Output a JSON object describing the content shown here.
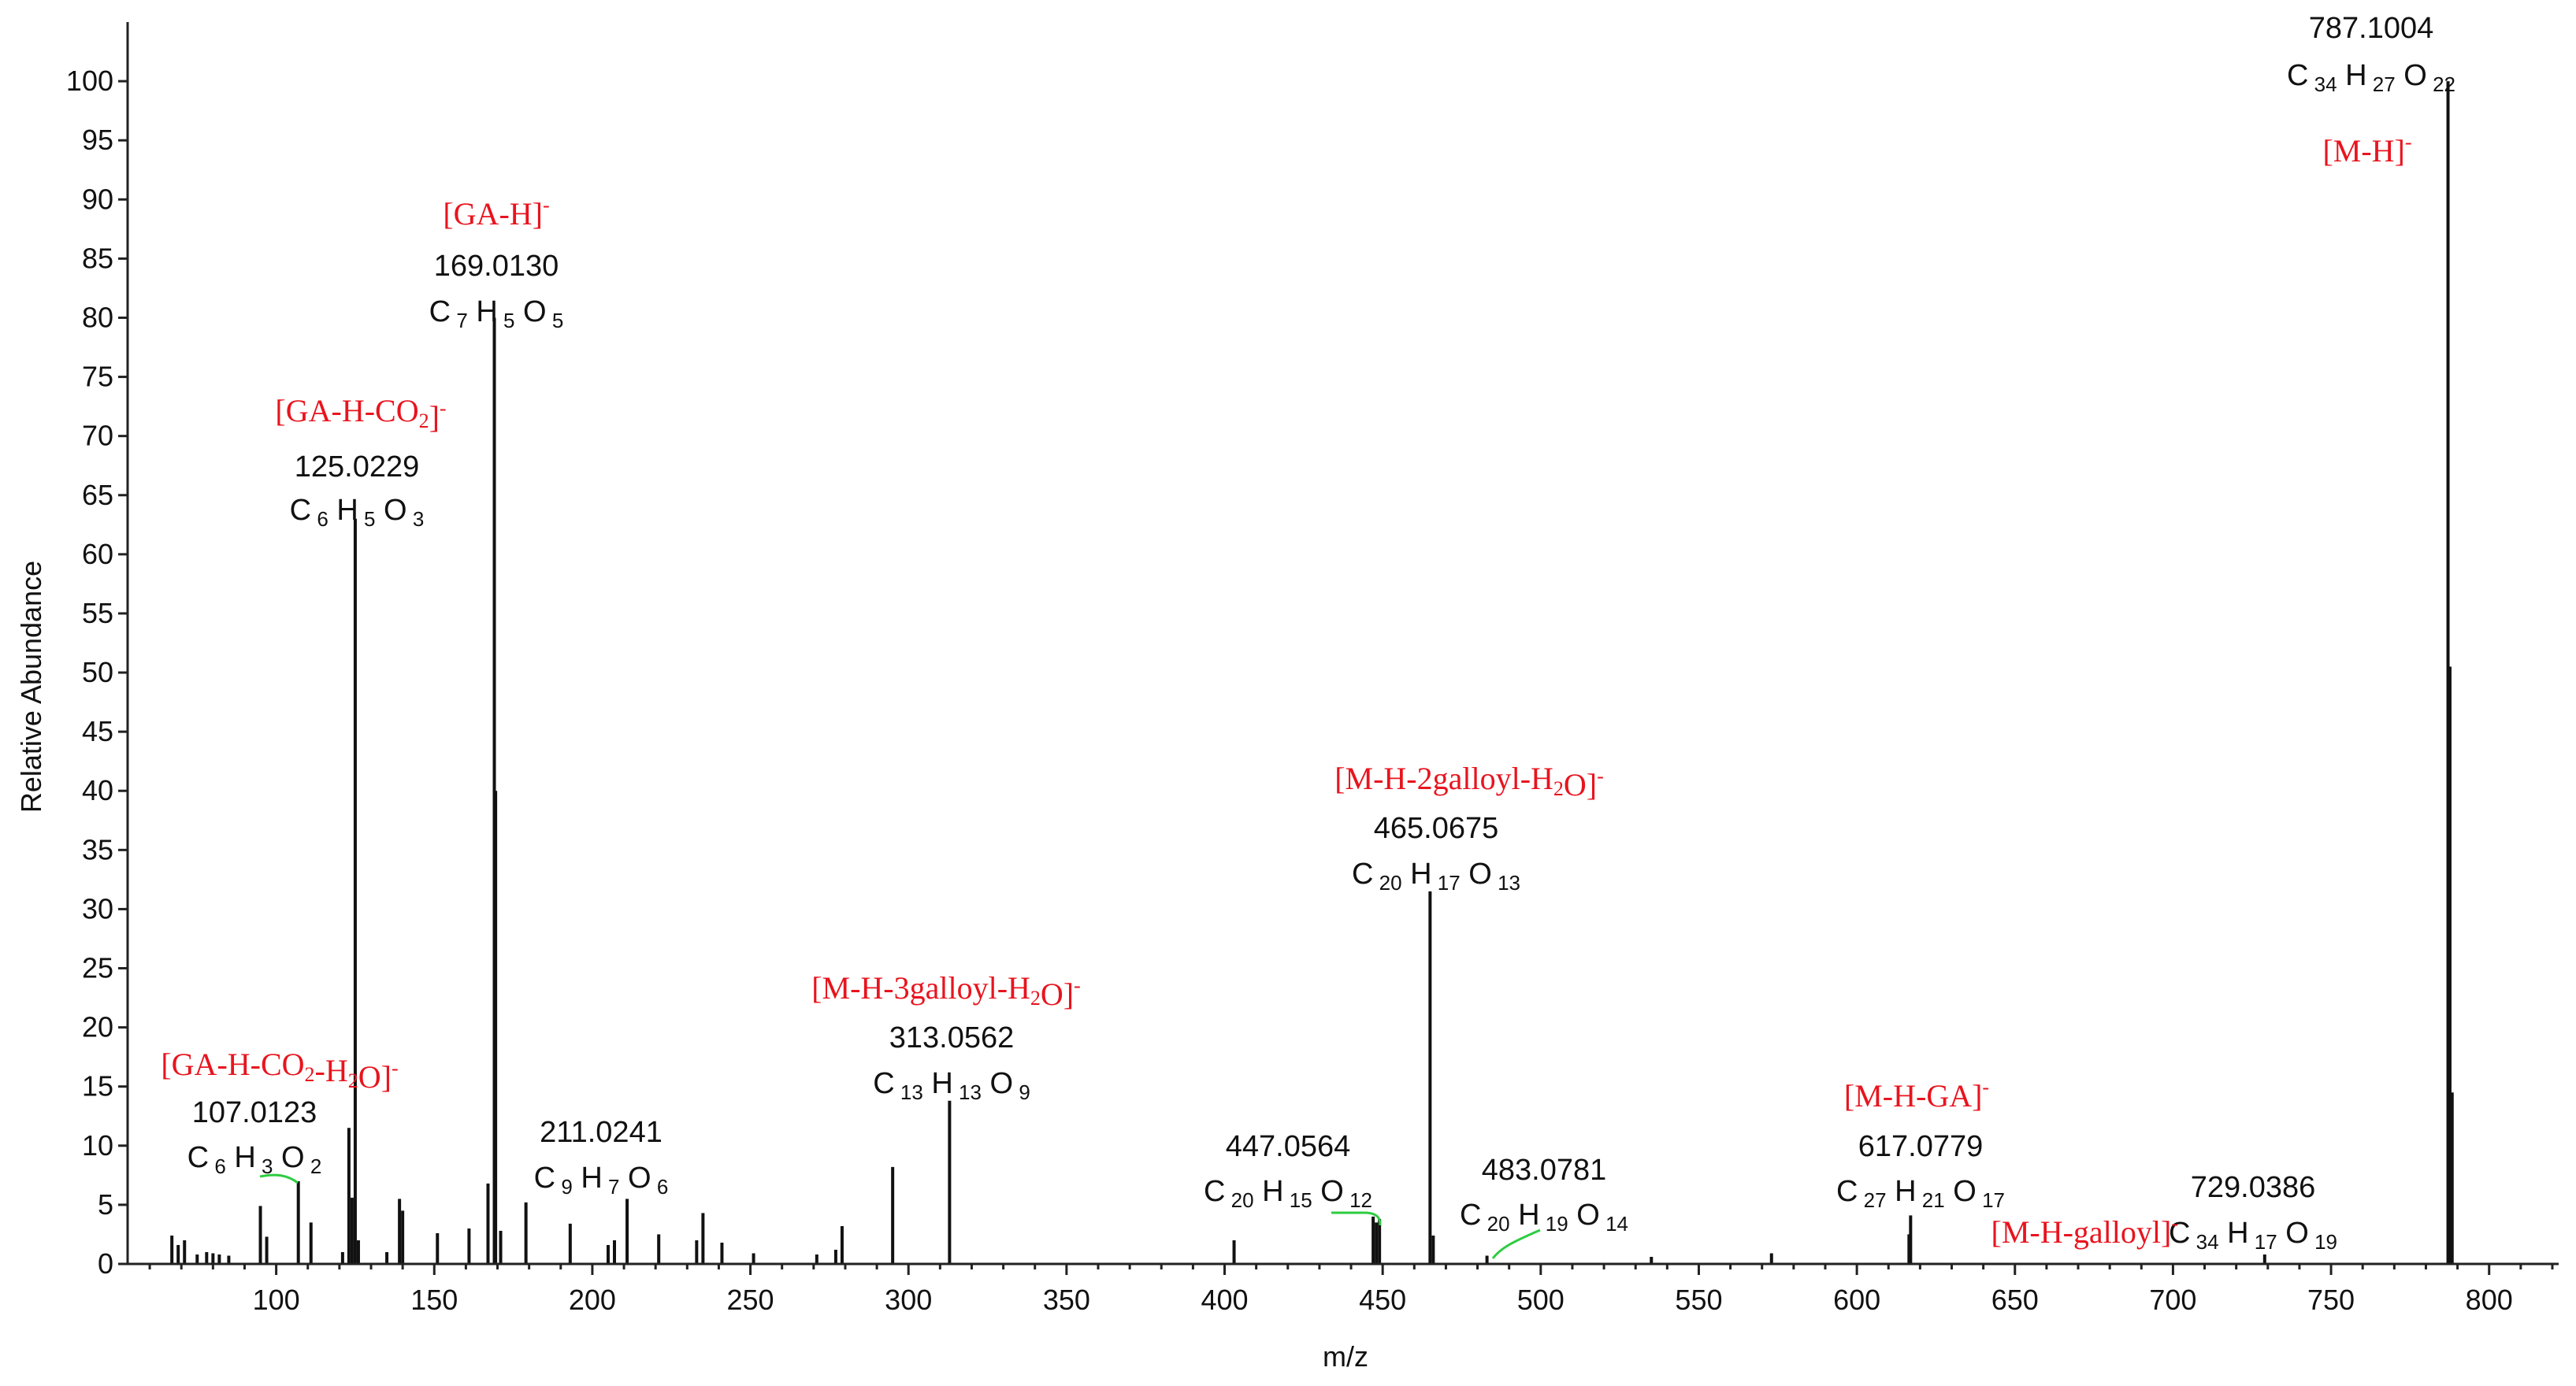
{
  "chart_data": {
    "type": "bar",
    "xlabel": "m/z",
    "ylabel": "Relative Abundance",
    "xlim": [
      53,
      822
    ],
    "ylim": [
      0,
      105
    ],
    "x_ticks": [
      100,
      150,
      200,
      250,
      300,
      350,
      400,
      450,
      500,
      550,
      600,
      650,
      700,
      750,
      800
    ],
    "y_ticks": [
      0,
      5,
      10,
      15,
      20,
      25,
      30,
      35,
      40,
      45,
      50,
      55,
      60,
      65,
      70,
      75,
      80,
      85,
      90,
      95,
      100
    ],
    "grid": false,
    "peaks": [
      {
        "mz": 67,
        "value": 2.4
      },
      {
        "mz": 69,
        "value": 1.6
      },
      {
        "mz": 71,
        "value": 2.0
      },
      {
        "mz": 75,
        "value": 0.8
      },
      {
        "mz": 78,
        "value": 1.0
      },
      {
        "mz": 80,
        "value": 0.9
      },
      {
        "mz": 82,
        "value": 0.8
      },
      {
        "mz": 85,
        "value": 0.7
      },
      {
        "mz": 95,
        "value": 4.9
      },
      {
        "mz": 97,
        "value": 2.3
      },
      {
        "mz": 107,
        "value": 7.0
      },
      {
        "mz": 111,
        "value": 3.5
      },
      {
        "mz": 121,
        "value": 1.0
      },
      {
        "mz": 123,
        "value": 11.5
      },
      {
        "mz": 124,
        "value": 5.6
      },
      {
        "mz": 125,
        "value": 63.0
      },
      {
        "mz": 126,
        "value": 2.0
      },
      {
        "mz": 135,
        "value": 1.0
      },
      {
        "mz": 139,
        "value": 5.5
      },
      {
        "mz": 140,
        "value": 4.5
      },
      {
        "mz": 151,
        "value": 2.6
      },
      {
        "mz": 161,
        "value": 3.0
      },
      {
        "mz": 167,
        "value": 6.8
      },
      {
        "mz": 169,
        "value": 80.0
      },
      {
        "mz": 169.4,
        "value": 40.0
      },
      {
        "mz": 171,
        "value": 2.8
      },
      {
        "mz": 179,
        "value": 5.2
      },
      {
        "mz": 193,
        "value": 3.4
      },
      {
        "mz": 205,
        "value": 1.6
      },
      {
        "mz": 207,
        "value": 2.0
      },
      {
        "mz": 211,
        "value": 5.5
      },
      {
        "mz": 221,
        "value": 2.5
      },
      {
        "mz": 233,
        "value": 2.0
      },
      {
        "mz": 235,
        "value": 4.3
      },
      {
        "mz": 241,
        "value": 1.8
      },
      {
        "mz": 251,
        "value": 0.9
      },
      {
        "mz": 271,
        "value": 0.8
      },
      {
        "mz": 277,
        "value": 1.2
      },
      {
        "mz": 279,
        "value": 3.2
      },
      {
        "mz": 295,
        "value": 8.2
      },
      {
        "mz": 313,
        "value": 13.8
      },
      {
        "mz": 403,
        "value": 2.0
      },
      {
        "mz": 447,
        "value": 4.0
      },
      {
        "mz": 448,
        "value": 3.5
      },
      {
        "mz": 449,
        "value": 3.8
      },
      {
        "mz": 465,
        "value": 31.5
      },
      {
        "mz": 466,
        "value": 2.4
      },
      {
        "mz": 483,
        "value": 0.7
      },
      {
        "mz": 535,
        "value": 0.6
      },
      {
        "mz": 573,
        "value": 0.9
      },
      {
        "mz": 617,
        "value": 4.1
      },
      {
        "mz": 616.5,
        "value": 2.5
      },
      {
        "mz": 729,
        "value": 0.8
      },
      {
        "mz": 787,
        "value": 100.0
      },
      {
        "mz": 787.6,
        "value": 50.5
      },
      {
        "mz": 788.3,
        "value": 14.5
      }
    ],
    "annotations": [
      {
        "id": "a787",
        "mz_label": "787.1004",
        "formula": [
          [
            "C",
            "34"
          ],
          [
            "H",
            "27"
          ],
          [
            "O",
            "22"
          ]
        ],
        "ion": [
          [
            "[M-H]",
            ""
          ],
          [
            "-",
            "sup"
          ]
        ]
      },
      {
        "id": "a169",
        "mz_label": "169.0130",
        "formula": [
          [
            "C",
            "7"
          ],
          [
            "H",
            "5"
          ],
          [
            "O",
            "5"
          ]
        ],
        "ion": [
          [
            "[GA-H]",
            ""
          ],
          [
            "-",
            "sup"
          ]
        ]
      },
      {
        "id": "a125",
        "mz_label": "125.0229",
        "formula": [
          [
            "C",
            "6"
          ],
          [
            "H",
            "5"
          ],
          [
            "O",
            "3"
          ]
        ],
        "ion": [
          [
            "[GA-H-CO",
            ""
          ],
          [
            "2",
            "sub"
          ],
          [
            "]",
            ""
          ],
          [
            "-",
            "sup"
          ]
        ]
      },
      {
        "id": "a107",
        "mz_label": "107.0123",
        "formula": [
          [
            "C",
            "6"
          ],
          [
            "H",
            "3"
          ],
          [
            "O",
            "2"
          ]
        ],
        "ion": [
          [
            "[GA-H-CO",
            ""
          ],
          [
            "2",
            "sub"
          ],
          [
            "-H",
            ""
          ],
          [
            "2",
            "sub"
          ],
          [
            "O]",
            ""
          ],
          [
            "-",
            "sup"
          ]
        ]
      },
      {
        "id": "a211",
        "mz_label": "211.0241",
        "formula": [
          [
            "C",
            "9"
          ],
          [
            "H",
            "7"
          ],
          [
            "O",
            "6"
          ]
        ],
        "ion": null
      },
      {
        "id": "a313",
        "mz_label": "313.0562",
        "formula": [
          [
            "C",
            "13"
          ],
          [
            "H",
            "13"
          ],
          [
            "O",
            "9"
          ]
        ],
        "ion": [
          [
            "[M-H-3galloyl-H",
            ""
          ],
          [
            "2",
            "sub"
          ],
          [
            "O]",
            ""
          ],
          [
            "-",
            "sup"
          ]
        ]
      },
      {
        "id": "a465",
        "mz_label": "465.0675",
        "formula": [
          [
            "C",
            "20"
          ],
          [
            "H",
            "17"
          ],
          [
            "O",
            "13"
          ]
        ],
        "ion": [
          [
            "[M-H-2galloyl-H",
            ""
          ],
          [
            "2",
            "sub"
          ],
          [
            "O]",
            ""
          ],
          [
            "-",
            "sup"
          ]
        ]
      },
      {
        "id": "a447",
        "mz_label": "447.0564",
        "formula": [
          [
            "C",
            "20"
          ],
          [
            "H",
            "15"
          ],
          [
            "O",
            "12"
          ]
        ],
        "ion": null
      },
      {
        "id": "a483",
        "mz_label": "483.0781",
        "formula": [
          [
            "C",
            "20"
          ],
          [
            "H",
            "19"
          ],
          [
            "O",
            "14"
          ]
        ],
        "ion": null
      },
      {
        "id": "a617",
        "mz_label": "617.0779",
        "formula": [
          [
            "C",
            "27"
          ],
          [
            "H",
            "21"
          ],
          [
            "O",
            "17"
          ]
        ],
        "ion": [
          [
            "[M-H-GA]",
            ""
          ],
          [
            "-",
            "sup"
          ]
        ]
      },
      {
        "id": "a729",
        "mz_label": "729.0386",
        "formula": [
          [
            "C",
            "34"
          ],
          [
            "H",
            "17"
          ],
          [
            "O",
            "19"
          ]
        ],
        "ion": [
          [
            "[M-H-galloyl]",
            ""
          ],
          [
            "-",
            "sup"
          ]
        ]
      }
    ],
    "colors": {
      "peaks": "#111111",
      "axis": "#222222",
      "ion_labels": "#e8141e",
      "leader_lines": "#2ecc40"
    }
  }
}
